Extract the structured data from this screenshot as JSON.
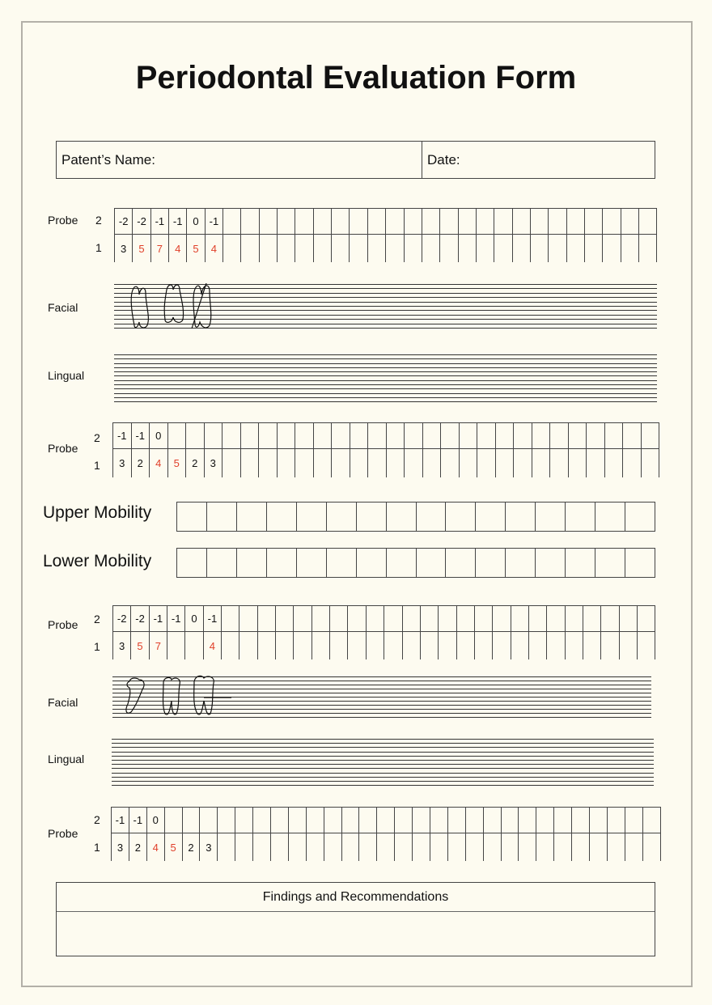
{
  "title": "Periodontal Evaluation Form",
  "header": {
    "name_label": "Patent’s Name:",
    "date_label": "Date:"
  },
  "labels": {
    "probe": "Probe",
    "facial": "Facial",
    "lingual": "Lingual",
    "row2": "2",
    "row1": "1"
  },
  "colors": {
    "red": "#e0402a",
    "border": "#b3b0a8",
    "background": "#fdfbf0"
  },
  "probes": [
    {
      "row2": [
        "-2",
        "-2",
        "-1",
        "-1",
        "0",
        "-1"
      ],
      "row1": [
        {
          "v": "3",
          "red": false
        },
        {
          "v": "5",
          "red": true
        },
        {
          "v": "7",
          "red": true
        },
        {
          "v": "4",
          "red": true
        },
        {
          "v": "5",
          "red": true
        },
        {
          "v": "4",
          "red": true
        }
      ]
    },
    {
      "row2": [
        "-1",
        "-1",
        "0"
      ],
      "row1": [
        {
          "v": "3",
          "red": false
        },
        {
          "v": "2",
          "red": false
        },
        {
          "v": "4",
          "red": true
        },
        {
          "v": "5",
          "red": true
        },
        {
          "v": "2",
          "red": false
        },
        {
          "v": "3",
          "red": false
        }
      ]
    },
    {
      "row2": [
        "-2",
        "-2",
        "-1",
        "-1",
        "0",
        "-1"
      ],
      "row1": [
        {
          "v": "3",
          "red": false
        },
        {
          "v": "5",
          "red": true
        },
        {
          "v": "7",
          "red": true
        },
        {
          "v": "",
          "red": false
        },
        {
          "v": "",
          "red": false
        },
        {
          "v": "4",
          "red": true
        }
      ]
    },
    {
      "row2": [
        "-1",
        "-1",
        "0"
      ],
      "row1": [
        {
          "v": "3",
          "red": false
        },
        {
          "v": "2",
          "red": false
        },
        {
          "v": "4",
          "red": true
        },
        {
          "v": "5",
          "red": true
        },
        {
          "v": "2",
          "red": false
        },
        {
          "v": "3",
          "red": false
        }
      ]
    }
  ],
  "mobility": {
    "upper": "Upper Mobility",
    "lower": "Lower Mobility"
  },
  "findings": {
    "title": "Findings and Recommendations"
  }
}
